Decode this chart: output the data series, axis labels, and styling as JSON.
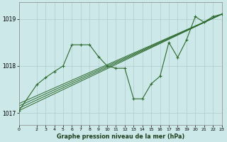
{
  "background_color": "#cce8e8",
  "grid_color": "#b0cccc",
  "line_color": "#2d6a2d",
  "title": "Graphe pression niveau de la mer (hPa)",
  "xlim": [
    0,
    23
  ],
  "ylim": [
    1016.75,
    1019.35
  ],
  "yticks": [
    1017,
    1018,
    1019
  ],
  "xticks": [
    0,
    2,
    3,
    4,
    5,
    6,
    7,
    8,
    9,
    10,
    11,
    12,
    13,
    14,
    15,
    16,
    17,
    18,
    19,
    20,
    21,
    22,
    23
  ],
  "trend_lines": [
    {
      "x0": 0,
      "y0": 1017.05,
      "x1": 23,
      "y1": 1019.1
    },
    {
      "x0": 0,
      "y0": 1017.1,
      "x1": 23,
      "y1": 1019.1
    },
    {
      "x0": 0,
      "y0": 1017.15,
      "x1": 23,
      "y1": 1019.1
    },
    {
      "x0": 0,
      "y0": 1017.2,
      "x1": 23,
      "y1": 1019.1
    }
  ],
  "main_x": [
    0,
    2,
    3,
    4,
    5,
    6,
    7,
    8,
    9,
    10,
    11,
    12,
    13,
    14,
    15,
    16,
    17,
    18,
    19,
    20,
    21,
    22,
    23
  ],
  "main_y": [
    1017.05,
    1017.6,
    1017.75,
    1017.88,
    1018.0,
    1018.45,
    1018.45,
    1018.45,
    1018.2,
    1018.0,
    1017.95,
    1017.95,
    1017.3,
    1017.3,
    1017.62,
    1017.78,
    1018.5,
    1018.18,
    1018.55,
    1019.05,
    1018.93,
    1019.05,
    1019.1
  ]
}
